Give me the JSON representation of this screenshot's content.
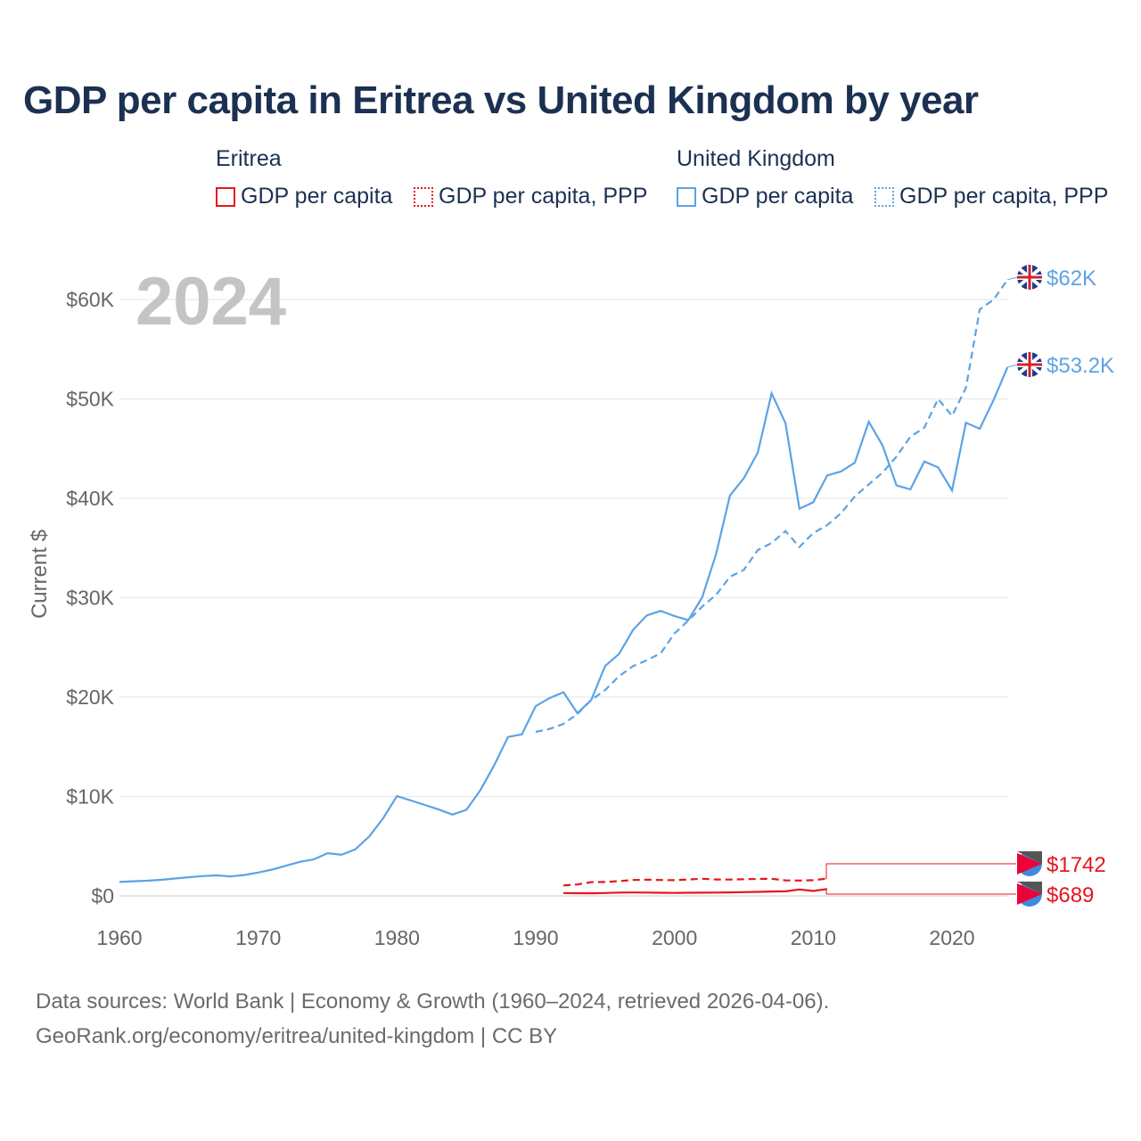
{
  "title": "GDP per capita in Eritrea vs United Kingdom by year",
  "legend": {
    "groups": [
      {
        "name": "Eritrea",
        "color": "#e8141c",
        "items": [
          "GDP per capita",
          "GDP per capita, PPP"
        ]
      },
      {
        "name": "United Kingdom",
        "color": "#5ba3e6",
        "items": [
          "GDP per capita",
          "GDP per capita, PPP"
        ]
      }
    ]
  },
  "year_label": "2024",
  "footer": {
    "line1": "Data sources: World Bank | Economy & Growth (1960–2024, retrieved 2026-04-06).",
    "line2": "GeoRank.org/economy/eritrea/united-kingdom | CC BY"
  },
  "chart_data": {
    "type": "line",
    "title": "GDP per capita in Eritrea vs United Kingdom by year",
    "ylabel": "Current $",
    "xlim": [
      1960,
      2024
    ],
    "ylim": [
      0,
      64000
    ],
    "x_ticks": [
      1960,
      1970,
      1980,
      1990,
      2000,
      2010,
      2020
    ],
    "x_tick_labels": [
      "1960",
      "1970",
      "1980",
      "1990",
      "2000",
      "2010",
      "2020"
    ],
    "y_ticks": [
      0,
      10000,
      20000,
      30000,
      40000,
      50000,
      60000
    ],
    "y_tick_labels": [
      "$0",
      "$10K",
      "$20K",
      "$30K",
      "$40K",
      "$50K",
      "$60K"
    ],
    "grid": true,
    "series": [
      {
        "name": "United Kingdom GDP per capita, PPP",
        "color": "#5ba3e6",
        "dash": true,
        "end_label": "$62K",
        "flag": "uk",
        "start": 1990,
        "values": [
          16500,
          16800,
          17300,
          18300,
          19700,
          20700,
          22100,
          23100,
          23700,
          24400,
          26400,
          27700,
          29100,
          30300,
          32100,
          32800,
          34800,
          35500,
          36700,
          35100,
          36500,
          37300,
          38500,
          40200,
          41400,
          42600,
          44200,
          46200,
          47100,
          50000,
          48300,
          51100,
          59000,
          60000,
          62000
        ]
      },
      {
        "name": "United Kingdom GDP per capita",
        "color": "#5ba3e6",
        "dash": false,
        "end_label": "$53.2K",
        "flag": "uk",
        "start": 1960,
        "values": [
          1398,
          1472,
          1525,
          1613,
          1748,
          1874,
          1987,
          2059,
          1952,
          2101,
          2348,
          2650,
          3030,
          3426,
          3666,
          4300,
          4138,
          4682,
          5976,
          7804,
          10032,
          9599,
          9146,
          8691,
          8179,
          8652,
          10611,
          13118,
          15987,
          16239,
          19095,
          19901,
          20487,
          18389,
          19709,
          23123,
          24332,
          26734,
          28214,
          28670,
          28150,
          27744,
          30057,
          34420,
          40290,
          42030,
          44600,
          50566,
          47549,
          38952,
          39599,
          42300,
          42700,
          43600,
          47700,
          45300,
          41300,
          40900,
          43700,
          43100,
          40800,
          47600,
          47000,
          49900,
          53200
        ]
      },
      {
        "name": "Eritrea GDP per capita, PPP",
        "color": "#e8141c",
        "dash": true,
        "end_label": "$1742",
        "flag": "eritrea",
        "start": 1992,
        "values": [
          1050,
          1150,
          1380,
          1400,
          1480,
          1600,
          1620,
          1600,
          1580,
          1650,
          1720,
          1650,
          1640,
          1680,
          1700,
          1720,
          1560,
          1540,
          1580,
          1742
        ]
      },
      {
        "name": "Eritrea GDP per capita",
        "color": "#e8141c",
        "dash": false,
        "end_label": "$689",
        "flag": "eritrea",
        "start": 1992,
        "values": [
          280,
          270,
          260,
          290,
          330,
          340,
          330,
          310,
          300,
          310,
          320,
          330,
          350,
          380,
          400,
          440,
          460,
          650,
          490,
          689
        ]
      }
    ]
  }
}
